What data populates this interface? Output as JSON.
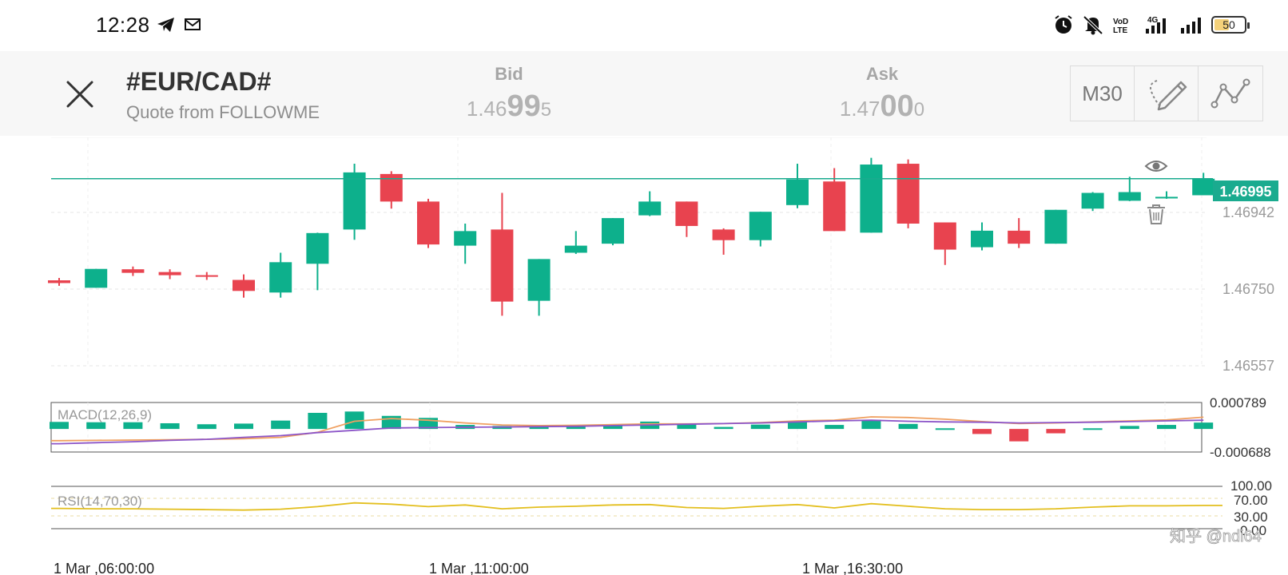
{
  "status_bar": {
    "time": "12:28",
    "left_icons": [
      "telegram-icon",
      "mail-icon"
    ],
    "right_icons": [
      "alarm-icon",
      "bell-muted-icon",
      "volte-icon",
      "signal-4g-icon",
      "signal-icon"
    ],
    "volte_text": "VoD LTE",
    "network_text": "4G",
    "battery_level": "50"
  },
  "header": {
    "close_icon": "close-icon",
    "symbol": "#EUR/CAD#",
    "quote_source": "Quote from FOLLOWME",
    "bid": {
      "label": "Bid",
      "prefix": "1.46",
      "big": "99",
      "suffix": "5"
    },
    "ask": {
      "label": "Ask",
      "prefix": "1.47",
      "big": "00",
      "suffix": "0"
    },
    "toolbar": {
      "timeframe": "M30",
      "draw_icon": "pencil-draw-icon",
      "indicator_icon": "line-chart-icon"
    }
  },
  "colors": {
    "up": "#0db08c",
    "down": "#e8434f",
    "price_line": "#1aab8f",
    "macd_line": "#f0a060",
    "signal_line": "#8c55c8",
    "rsi_line": "#e3bf1f"
  },
  "main_chart": {
    "price_axis": [
      "1.46942",
      "1.46750",
      "1.46557"
    ],
    "current_price": "1.46995",
    "eye_icon": "eye-icon",
    "trash_icon": "trash-icon"
  },
  "chart_data": {
    "type": "candlestick",
    "ylim": [
      1.4652,
      1.471
    ],
    "candles": [
      {
        "o": 1.46737,
        "h": 1.46743,
        "l": 1.46723,
        "c": 1.4673
      },
      {
        "o": 1.46718,
        "h": 1.46766,
        "l": 1.46718,
        "c": 1.46766
      },
      {
        "o": 1.46765,
        "h": 1.46772,
        "l": 1.46748,
        "c": 1.46756
      },
      {
        "o": 1.46758,
        "h": 1.46765,
        "l": 1.4674,
        "c": 1.4675
      },
      {
        "o": 1.4675,
        "h": 1.46758,
        "l": 1.46738,
        "c": 1.46746
      },
      {
        "o": 1.46738,
        "h": 1.46752,
        "l": 1.46693,
        "c": 1.4671
      },
      {
        "o": 1.46706,
        "h": 1.46807,
        "l": 1.46693,
        "c": 1.46783
      },
      {
        "o": 1.46779,
        "h": 1.46858,
        "l": 1.46712,
        "c": 1.46857
      },
      {
        "o": 1.46866,
        "h": 1.47033,
        "l": 1.4684,
        "c": 1.47011
      },
      {
        "o": 1.47007,
        "h": 1.47014,
        "l": 1.46919,
        "c": 1.46937
      },
      {
        "o": 1.46937,
        "h": 1.46944,
        "l": 1.46819,
        "c": 1.46828
      },
      {
        "o": 1.46825,
        "h": 1.46881,
        "l": 1.46779,
        "c": 1.46862
      },
      {
        "o": 1.46866,
        "h": 1.46959,
        "l": 1.46647,
        "c": 1.46683
      },
      {
        "o": 1.46685,
        "h": 1.46791,
        "l": 1.46647,
        "c": 1.46791
      },
      {
        "o": 1.46807,
        "h": 1.46862,
        "l": 1.46804,
        "c": 1.46825
      },
      {
        "o": 1.4683,
        "h": 1.46895,
        "l": 1.46826,
        "c": 1.46895
      },
      {
        "o": 1.46902,
        "h": 1.46963,
        "l": 1.469,
        "c": 1.46937
      },
      {
        "o": 1.46937,
        "h": 1.46937,
        "l": 1.46847,
        "c": 1.46875
      },
      {
        "o": 1.46866,
        "h": 1.46869,
        "l": 1.46802,
        "c": 1.46839
      },
      {
        "o": 1.46839,
        "h": 1.46911,
        "l": 1.46823,
        "c": 1.46911
      },
      {
        "o": 1.46928,
        "h": 1.47033,
        "l": 1.4692,
        "c": 1.46993
      },
      {
        "o": 1.46988,
        "h": 1.47022,
        "l": 1.46862,
        "c": 1.46862
      },
      {
        "o": 1.46858,
        "h": 1.47048,
        "l": 1.46858,
        "c": 1.47031
      },
      {
        "o": 1.47033,
        "h": 1.47044,
        "l": 1.46869,
        "c": 1.46881
      },
      {
        "o": 1.46884,
        "h": 1.46884,
        "l": 1.46776,
        "c": 1.46815
      },
      {
        "o": 1.46821,
        "h": 1.46884,
        "l": 1.46813,
        "c": 1.46863
      },
      {
        "o": 1.46863,
        "h": 1.46895,
        "l": 1.46819,
        "c": 1.4683
      },
      {
        "o": 1.4683,
        "h": 1.46916,
        "l": 1.4683,
        "c": 1.46916
      },
      {
        "o": 1.46919,
        "h": 1.46961,
        "l": 1.46913,
        "c": 1.46959
      },
      {
        "o": 1.46939,
        "h": 1.47,
        "l": 1.46938,
        "c": 1.46961
      },
      {
        "o": 1.46946,
        "h": 1.46963,
        "l": 1.46944,
        "c": 1.46949
      },
      {
        "o": 1.46953,
        "h": 1.4701,
        "l": 1.46953,
        "c": 1.46995
      }
    ],
    "x_tick_labels": [
      "1 Mar ,06:00:00",
      "1 Mar ,11:00:00",
      "1 Mar ,16:30:00"
    ],
    "macd": {
      "label": "MACD(12,26,9)",
      "axis_max": "0.000789",
      "axis_min": "-0.000688",
      "histogram": [
        0.00021,
        0.0002,
        0.0002,
        0.00017,
        0.00014,
        0.00016,
        0.00025,
        0.00048,
        0.00052,
        0.00039,
        0.00033,
        0.00012,
        9e-05,
        6e-05,
        7e-05,
        0.00012,
        0.00022,
        0.00014,
        6e-05,
        0.00013,
        0.00024,
        0.00012,
        0.00027,
        0.00015,
        2e-05,
        -0.00015,
        -0.00037,
        -0.00013,
        2e-05,
        9e-05,
        0.00012,
        0.00019
      ],
      "macd_line": [
        -0.00035,
        -0.00034,
        -0.00033,
        -0.00032,
        -0.00031,
        -0.00029,
        -0.00025,
        -0.0001,
        0.00023,
        0.00031,
        0.00026,
        0.00018,
        0.00012,
        0.0001,
        0.00011,
        0.00013,
        0.00015,
        0.00015,
        0.00016,
        0.00019,
        0.00024,
        0.00026,
        0.00036,
        0.00034,
        0.00029,
        0.00022,
        0.00016,
        0.00018,
        0.00021,
        0.00024,
        0.00027,
        0.00035
      ],
      "signal_line": [
        -0.00044,
        -0.00041,
        -0.00038,
        -0.00034,
        -0.00031,
        -0.00025,
        -0.0002,
        -0.00011,
        -4e-05,
        3e-05,
        4e-05,
        5e-05,
        6e-05,
        7e-05,
        8e-05,
        0.0001,
        0.00012,
        0.00014,
        0.00016,
        0.00018,
        0.00021,
        0.00024,
        0.00026,
        0.00023,
        0.00021,
        0.0002,
        0.00018,
        0.00019,
        0.0002,
        0.00022,
        0.00024,
        0.00026
      ]
    },
    "rsi": {
      "label": "RSI(14,70,30)",
      "levels": [
        "100.00",
        "70.00",
        "30.00",
        "0.00"
      ],
      "values": [
        48,
        47,
        47,
        46,
        45,
        44,
        46,
        52,
        61,
        58,
        52,
        56,
        47,
        51,
        53,
        56,
        57,
        50,
        48,
        53,
        57,
        49,
        59,
        53,
        47,
        45,
        45,
        47,
        51,
        54,
        54,
        55
      ]
    }
  },
  "watermark": "知乎 @ndi64"
}
